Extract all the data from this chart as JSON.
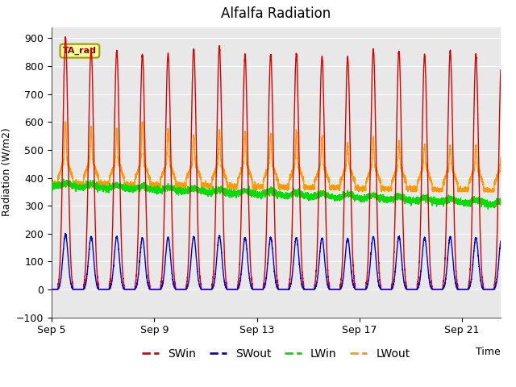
{
  "title": "Alfalfa Radiation",
  "xlabel": "Time",
  "ylabel": "Radiation (W/m2)",
  "ylim": [
    -100,
    940
  ],
  "xlim_days": [
    0,
    17.5
  ],
  "x_ticks_days": [
    0,
    4,
    8,
    12,
    16
  ],
  "x_tick_labels": [
    "Sep 5",
    "Sep 9",
    "Sep 13",
    "Sep 17",
    "Sep 21"
  ],
  "annotation_text": "TA_rad",
  "legend_labels": [
    "SWin",
    "SWout",
    "LWin",
    "LWout"
  ],
  "colors": {
    "SWin": "#dd0000",
    "SWout": "#0000dd",
    "LWin": "#00dd00",
    "LWout": "#ff9900"
  },
  "plot_bg_color": "#e8e8e8",
  "figure_background": "#ffffff",
  "linewidth": 1.0,
  "title_fontsize": 12,
  "axis_fontsize": 9,
  "legend_fontsize": 10
}
